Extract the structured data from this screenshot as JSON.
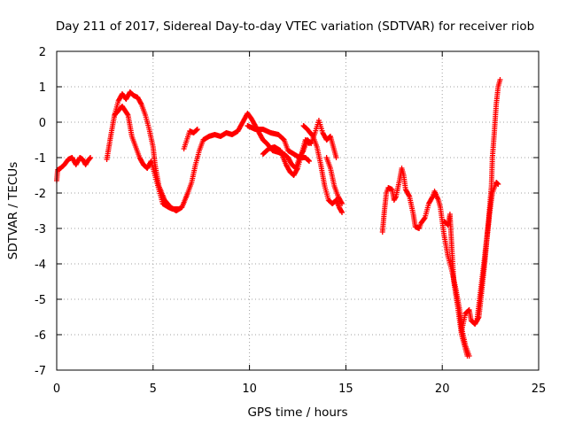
{
  "chart_data": {
    "type": "scatter",
    "title": "Day 211 of 2017, Sidereal Day-to-day VTEC variation (SDTVAR) for receiver riob",
    "xlabel": "GPS time / hours",
    "ylabel": "SDTVAR / TECUs",
    "xlim": [
      0,
      25
    ],
    "ylim": [
      -7,
      2
    ],
    "xticks": [
      0,
      5,
      10,
      15,
      20,
      25
    ],
    "yticks": [
      -7,
      -6,
      -5,
      -4,
      -3,
      -2,
      -1,
      0,
      1,
      2
    ],
    "grid": true,
    "marker": "plus",
    "series": [
      {
        "color": "#ff0000",
        "segments": [
          [
            [
              0.0,
              -1.65
            ],
            [
              0.05,
              -1.35
            ],
            [
              0.2,
              -1.3
            ],
            [
              0.4,
              -1.2
            ],
            [
              0.6,
              -1.05
            ],
            [
              0.8,
              -1.0
            ],
            [
              1.0,
              -1.2
            ],
            [
              1.1,
              -1.1
            ],
            [
              1.2,
              -1.0
            ],
            [
              1.35,
              -1.05
            ],
            [
              1.5,
              -1.2
            ],
            [
              1.6,
              -1.1
            ],
            [
              1.75,
              -1.0
            ]
          ],
          [
            [
              2.6,
              -1.05
            ],
            [
              2.8,
              -0.4
            ],
            [
              3.0,
              0.2
            ],
            [
              3.2,
              0.6
            ],
            [
              3.4,
              0.8
            ],
            [
              3.6,
              0.65
            ],
            [
              3.8,
              0.85
            ],
            [
              4.0,
              0.75
            ],
            [
              4.2,
              0.7
            ],
            [
              4.4,
              0.5
            ],
            [
              4.6,
              0.2
            ],
            [
              4.8,
              -0.2
            ],
            [
              5.0,
              -0.7
            ],
            [
              5.1,
              -1.2
            ],
            [
              5.3,
              -1.8
            ],
            [
              5.6,
              -2.2
            ],
            [
              5.9,
              -2.4
            ],
            [
              6.2,
              -2.5
            ],
            [
              6.5,
              -2.4
            ],
            [
              6.8,
              -2.0
            ],
            [
              7.0,
              -1.7
            ],
            [
              7.2,
              -1.2
            ],
            [
              7.4,
              -0.8
            ],
            [
              7.6,
              -0.5
            ],
            [
              7.9,
              -0.4
            ],
            [
              8.2,
              -0.35
            ],
            [
              8.5,
              -0.4
            ],
            [
              8.8,
              -0.3
            ],
            [
              9.1,
              -0.35
            ],
            [
              9.4,
              -0.25
            ],
            [
              9.7,
              0.05
            ],
            [
              9.9,
              0.25
            ],
            [
              10.1,
              0.1
            ],
            [
              10.3,
              -0.1
            ],
            [
              10.5,
              -0.3
            ],
            [
              10.7,
              -0.5
            ],
            [
              10.9,
              -0.6
            ],
            [
              11.2,
              -0.8
            ],
            [
              11.5,
              -0.85
            ],
            [
              11.8,
              -0.9
            ],
            [
              12.0,
              -1.0
            ],
            [
              12.2,
              -1.2
            ],
            [
              12.4,
              -1.3
            ],
            [
              12.6,
              -1.0
            ],
            [
              12.8,
              -0.8
            ],
            [
              13.0,
              -0.5
            ],
            [
              13.2,
              -0.6
            ],
            [
              13.4,
              -0.3
            ],
            [
              13.6,
              0.05
            ],
            [
              13.8,
              -0.3
            ],
            [
              14.0,
              -0.5
            ],
            [
              14.2,
              -0.4
            ],
            [
              14.35,
              -0.7
            ],
            [
              14.5,
              -1.0
            ]
          ],
          [
            [
              3.0,
              0.2
            ],
            [
              3.4,
              0.45
            ],
            [
              3.7,
              0.2
            ],
            [
              3.9,
              -0.4
            ],
            [
              4.1,
              -0.7
            ],
            [
              4.3,
              -1.0
            ],
            [
              4.5,
              -1.2
            ],
            [
              4.7,
              -1.3
            ],
            [
              4.9,
              -1.1
            ],
            [
              5.1,
              -1.5
            ],
            [
              5.3,
              -1.9
            ],
            [
              5.5,
              -2.3
            ],
            [
              5.8,
              -2.4
            ],
            [
              6.0,
              -2.45
            ],
            [
              6.3,
              -2.45
            ]
          ],
          [
            [
              6.6,
              -0.75
            ],
            [
              6.9,
              -0.25
            ],
            [
              7.1,
              -0.3
            ],
            [
              7.3,
              -0.2
            ]
          ],
          [
            [
              10.7,
              -0.9
            ],
            [
              11.0,
              -0.75
            ],
            [
              11.3,
              -0.7
            ],
            [
              11.6,
              -0.8
            ],
            [
              11.9,
              -1.2
            ],
            [
              12.1,
              -1.4
            ],
            [
              12.3,
              -1.5
            ],
            [
              12.5,
              -1.3
            ],
            [
              12.7,
              -0.9
            ],
            [
              12.9,
              -0.5
            ],
            [
              13.1,
              -0.6
            ]
          ],
          [
            [
              9.9,
              -0.1
            ],
            [
              10.3,
              -0.2
            ],
            [
              10.7,
              -0.2
            ],
            [
              11.1,
              -0.3
            ],
            [
              11.5,
              -0.35
            ],
            [
              11.8,
              -0.5
            ],
            [
              12.0,
              -0.8
            ],
            [
              12.3,
              -0.9
            ],
            [
              12.6,
              -1.0
            ],
            [
              12.9,
              -1.0
            ],
            [
              13.1,
              -1.1
            ]
          ],
          [
            [
              12.8,
              -0.1
            ],
            [
              13.0,
              -0.2
            ],
            [
              13.3,
              -0.4
            ],
            [
              13.5,
              -0.7
            ],
            [
              13.7,
              -1.2
            ],
            [
              13.9,
              -1.8
            ],
            [
              14.1,
              -2.2
            ],
            [
              14.3,
              -2.3
            ],
            [
              14.5,
              -2.2
            ],
            [
              14.65,
              -2.4
            ],
            [
              14.8,
              -2.55
            ]
          ],
          [
            [
              14.0,
              -1.0
            ],
            [
              14.2,
              -1.3
            ],
            [
              14.4,
              -1.8
            ],
            [
              14.6,
              -2.1
            ],
            [
              14.8,
              -2.3
            ]
          ],
          [
            [
              16.9,
              -3.1
            ],
            [
              17.0,
              -2.5
            ],
            [
              17.1,
              -2.0
            ],
            [
              17.2,
              -1.85
            ],
            [
              17.4,
              -1.9
            ],
            [
              17.5,
              -2.2
            ],
            [
              17.6,
              -2.1
            ],
            [
              17.8,
              -1.6
            ],
            [
              17.9,
              -1.3
            ],
            [
              18.0,
              -1.5
            ],
            [
              18.1,
              -1.9
            ],
            [
              18.3,
              -2.1
            ],
            [
              18.5,
              -2.6
            ],
            [
              18.6,
              -2.95
            ],
            [
              18.8,
              -3.0
            ],
            [
              18.9,
              -2.85
            ],
            [
              19.1,
              -2.7
            ],
            [
              19.3,
              -2.3
            ],
            [
              19.5,
              -2.1
            ],
            [
              19.6,
              -1.95
            ],
            [
              19.8,
              -2.2
            ],
            [
              19.9,
              -2.4
            ],
            [
              20.0,
              -2.8
            ],
            [
              20.1,
              -3.2
            ],
            [
              20.3,
              -3.8
            ],
            [
              20.5,
              -4.2
            ],
            [
              20.7,
              -4.7
            ],
            [
              20.9,
              -5.3
            ],
            [
              21.0,
              -5.8
            ],
            [
              21.2,
              -6.3
            ],
            [
              21.4,
              -6.6
            ]
          ],
          [
            [
              21.0,
              -5.9
            ],
            [
              21.2,
              -5.4
            ],
            [
              21.4,
              -5.3
            ],
            [
              21.5,
              -5.6
            ],
            [
              21.7,
              -5.7
            ],
            [
              21.9,
              -5.5
            ],
            [
              22.0,
              -5.0
            ],
            [
              22.2,
              -4.0
            ],
            [
              22.3,
              -3.4
            ],
            [
              22.45,
              -2.6
            ],
            [
              22.6,
              -2.0
            ],
            [
              22.8,
              -1.7
            ],
            [
              22.9,
              -1.75
            ]
          ],
          [
            [
              20.1,
              -2.8
            ],
            [
              20.3,
              -2.9
            ],
            [
              20.4,
              -2.6
            ],
            [
              20.5,
              -3.6
            ],
            [
              20.6,
              -4.5
            ],
            [
              20.8,
              -5.2
            ],
            [
              21.0,
              -6.0
            ],
            [
              21.2,
              -6.4
            ],
            [
              21.3,
              -6.6
            ]
          ],
          [
            [
              21.8,
              -5.6
            ],
            [
              22.0,
              -4.7
            ],
            [
              22.2,
              -3.8
            ],
            [
              22.4,
              -2.8
            ],
            [
              22.55,
              -1.8
            ],
            [
              22.6,
              -1.0
            ],
            [
              22.7,
              -0.3
            ],
            [
              22.8,
              0.5
            ],
            [
              22.9,
              1.0
            ],
            [
              23.0,
              1.2
            ]
          ]
        ]
      }
    ]
  }
}
